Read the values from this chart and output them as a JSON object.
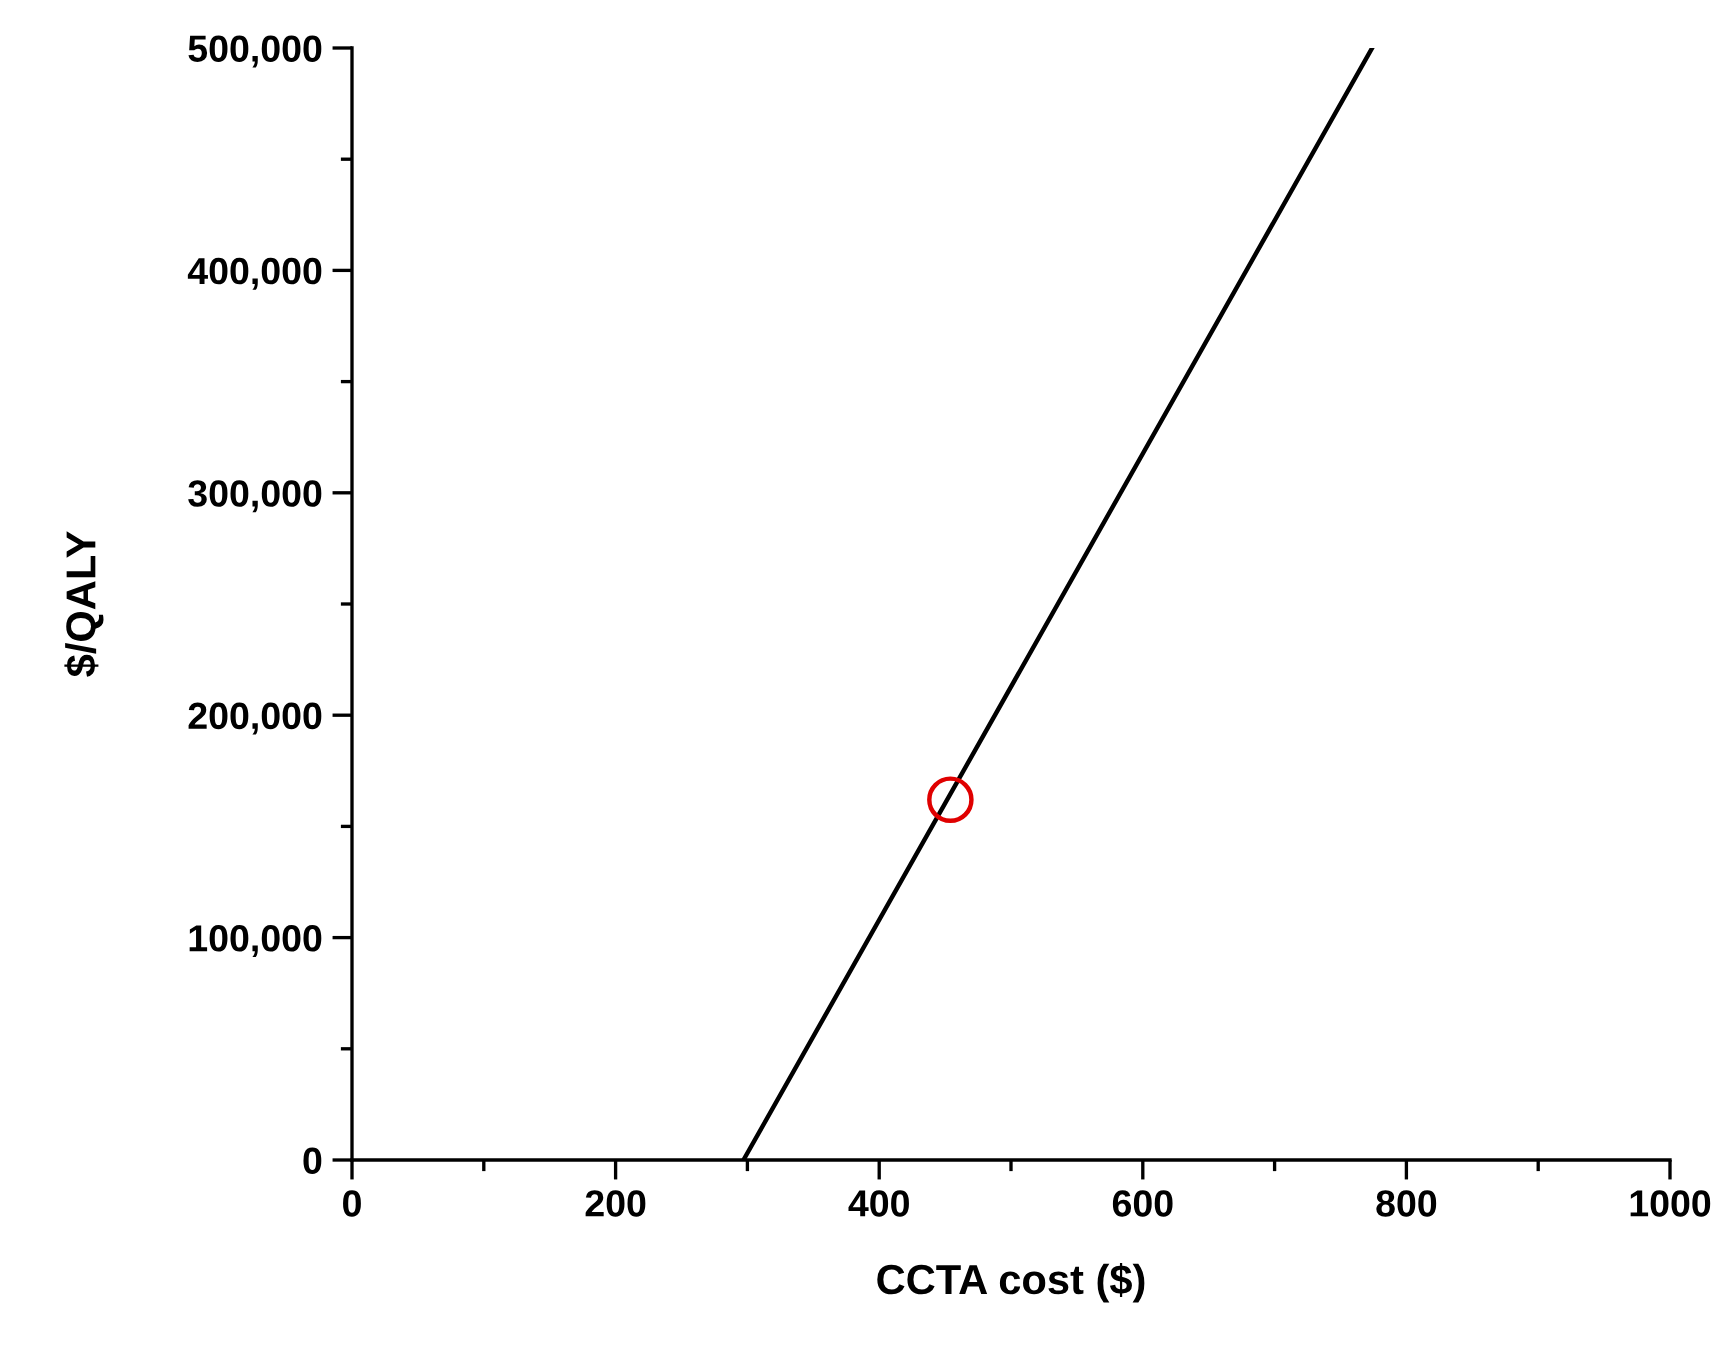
{
  "chart_data": {
    "type": "line",
    "xlabel": "CCTA cost ($)",
    "ylabel": "$/QALY",
    "xlim": [
      0,
      1000
    ],
    "ylim": [
      0,
      500000
    ],
    "xticks": [
      0,
      {
        "value": 100,
        "label": null
      },
      200,
      {
        "value": 300,
        "label": null
      },
      400,
      {
        "value": 500,
        "label": null
      },
      600,
      {
        "value": 700,
        "label": null
      },
      800,
      {
        "value": 900,
        "label": null
      },
      1000
    ],
    "yticks": [
      {
        "value": 0,
        "label": "0"
      },
      {
        "value": 50000,
        "label": null
      },
      {
        "value": 100000,
        "label": "100,000"
      },
      {
        "value": 150000,
        "label": null
      },
      {
        "value": 200000,
        "label": "200,000"
      },
      {
        "value": 250000,
        "label": null
      },
      {
        "value": 300000,
        "label": "300,000"
      },
      {
        "value": 350000,
        "label": null
      },
      {
        "value": 400000,
        "label": "400,000"
      },
      {
        "value": 450000,
        "label": null
      },
      {
        "value": 500000,
        "label": "500,000"
      }
    ],
    "grid": false,
    "legend": false,
    "series": [
      {
        "color": "#000000",
        "x": [
          297,
          774
        ],
        "values": [
          0,
          500000
        ],
        "line_style": "solid",
        "marker": "none"
      },
      {
        "type": "scatter",
        "color": "#e00000",
        "x": [
          454
        ],
        "values": [
          162000
        ],
        "marker": "circle"
      }
    ]
  }
}
